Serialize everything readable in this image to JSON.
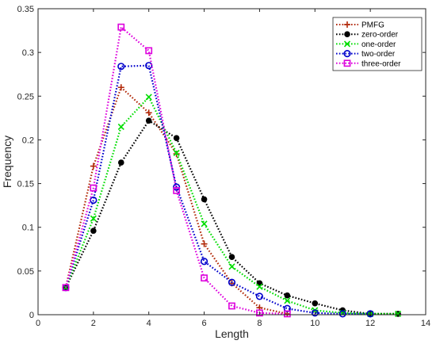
{
  "chart_data": {
    "type": "line",
    "title": "",
    "xlabel": "Length",
    "ylabel": "Frequency",
    "xlim": [
      0,
      14
    ],
    "ylim": [
      0,
      0.35
    ],
    "xticks": [
      0,
      2,
      4,
      6,
      8,
      10,
      12,
      14
    ],
    "yticks": [
      0,
      0.05,
      0.1,
      0.15,
      0.2,
      0.25,
      0.3,
      0.35
    ],
    "xtick_labels": [
      "0",
      "2",
      "4",
      "6",
      "8",
      "10",
      "12",
      "14"
    ],
    "ytick_labels": [
      "0",
      "0.05",
      "0.1",
      "0.15",
      "0.2",
      "0.25",
      "0.3",
      "0.35"
    ],
    "grid": false,
    "legend_position": "top-right",
    "series": [
      {
        "name": "PMFG",
        "color": "#b22a0a",
        "marker": "plus",
        "x": [
          1,
          2,
          3,
          4,
          5,
          6,
          7,
          8,
          9
        ],
        "y": [
          0.031,
          0.17,
          0.26,
          0.231,
          0.184,
          0.081,
          0.036,
          0.008,
          0.001
        ]
      },
      {
        "name": "zero-order",
        "color": "#000000",
        "marker": "dot",
        "x": [
          1,
          2,
          3,
          4,
          5,
          6,
          7,
          8,
          9,
          10,
          11,
          12,
          13
        ],
        "y": [
          0.031,
          0.096,
          0.174,
          0.222,
          0.202,
          0.132,
          0.066,
          0.036,
          0.022,
          0.013,
          0.005,
          0.001,
          0.001
        ]
      },
      {
        "name": "one-order",
        "color": "#00dd00",
        "marker": "x",
        "x": [
          1,
          2,
          3,
          4,
          5,
          6,
          7,
          8,
          9,
          10,
          11,
          12,
          13
        ],
        "y": [
          0.031,
          0.11,
          0.215,
          0.249,
          0.185,
          0.104,
          0.055,
          0.032,
          0.016,
          0.005,
          0.002,
          0.001,
          0.001
        ]
      },
      {
        "name": "two-order",
        "color": "#0000cc",
        "marker": "circle",
        "x": [
          1,
          2,
          3,
          4,
          5,
          6,
          7,
          8,
          9,
          10,
          11,
          12
        ],
        "y": [
          0.031,
          0.131,
          0.284,
          0.285,
          0.146,
          0.061,
          0.037,
          0.021,
          0.007,
          0.002,
          0.001,
          0.001
        ]
      },
      {
        "name": "three-order",
        "color": "#dd00dd",
        "marker": "square",
        "x": [
          1,
          2,
          3,
          4,
          5,
          6,
          7,
          8,
          9
        ],
        "y": [
          0.031,
          0.145,
          0.329,
          0.302,
          0.142,
          0.042,
          0.01,
          0.002,
          0.001
        ]
      }
    ]
  }
}
